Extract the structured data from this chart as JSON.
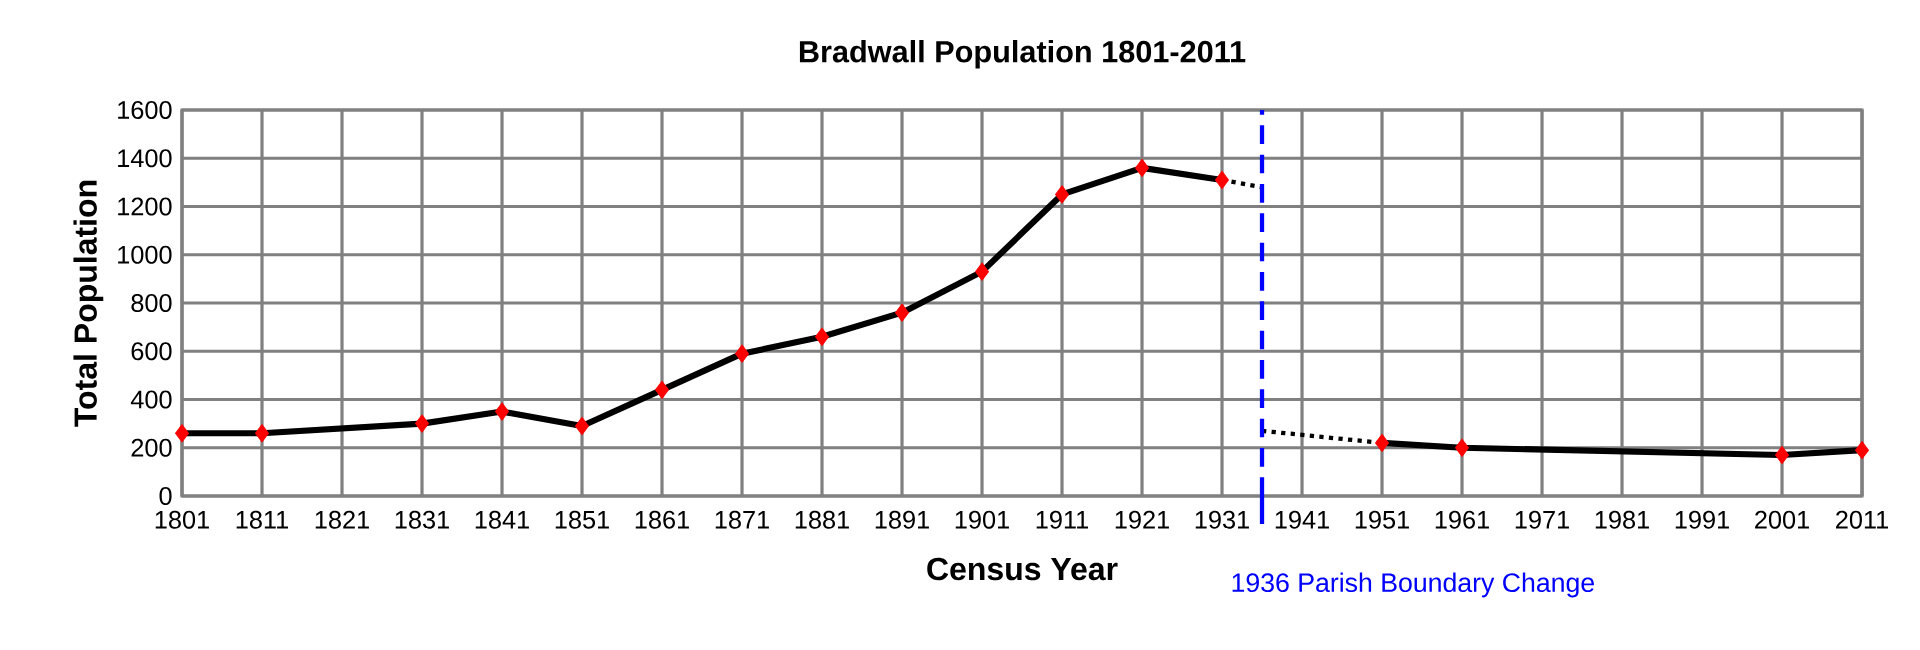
{
  "chart_data": {
    "type": "line",
    "title": "Bradwall Population 1801-2011",
    "xlabel": "Census Year",
    "ylabel": "Total Population",
    "xlim": [
      1801,
      2011
    ],
    "xticks": [
      1801,
      1811,
      1821,
      1831,
      1841,
      1851,
      1861,
      1871,
      1881,
      1891,
      1901,
      1911,
      1921,
      1931,
      1941,
      1951,
      1961,
      1971,
      1981,
      1991,
      2001,
      2011
    ],
    "ylim": [
      0,
      1600
    ],
    "yticks": [
      0,
      200,
      400,
      600,
      800,
      1000,
      1200,
      1400,
      1600
    ],
    "grid": true,
    "marker": "diamond",
    "line_style": "solid",
    "series": [
      {
        "color": "#000000",
        "colors": [
          "#ff0000",
          "#ff0000",
          "#ff0000",
          "#ff0000",
          "#ff0000",
          "#ff0000",
          "#ff0000",
          "#ff0000",
          "#ff0000",
          "#ff0000",
          "#ff0000",
          "#ff0000",
          "#ff0000",
          "#ff0000",
          "#ff0000",
          "#ff0000",
          "#ff0000",
          "#ff0000"
        ],
        "x": [
          1801,
          1811,
          1831,
          1841,
          1851,
          1861,
          1871,
          1881,
          1891,
          1901,
          1911,
          1921,
          1931,
          1941,
          1951,
          1961,
          2001,
          2011
        ],
        "values": [
          260,
          260,
          300,
          350,
          290,
          440,
          590,
          660,
          760,
          930,
          1250,
          1360,
          1310,
          null,
          220,
          200,
          170,
          190
        ]
      },
      {
        "type": "line",
        "color": "#000000",
        "marker": "none",
        "line_style": "dotted",
        "x": [
          1931,
          1936
        ],
        "values": [
          1310,
          1280
        ]
      },
      {
        "type": "line",
        "color": "#000000",
        "marker": "none",
        "line_style": "dotted",
        "x": [
          1936,
          1951
        ],
        "values": [
          270,
          220
        ]
      }
    ],
    "ref_lines": [
      {
        "axis": "x",
        "value": 1936,
        "label": "1936 Parish Boundary Change",
        "color": "#0000ff",
        "line_style": "dashed"
      }
    ]
  }
}
